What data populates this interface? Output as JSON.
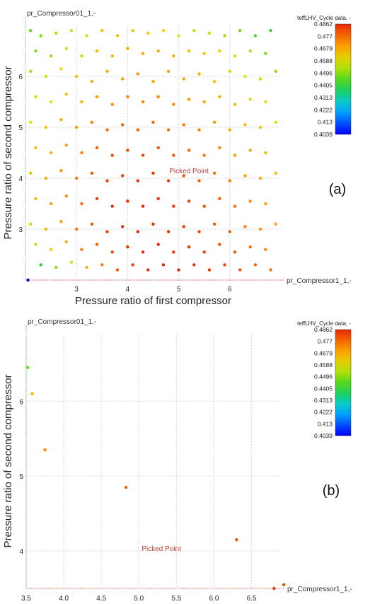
{
  "chart_data": [
    {
      "type": "scatter",
      "panel_label": "(a)",
      "xlabel": "Pressure ratio of first compressor",
      "ylabel": "Pressure ratio of second compressor",
      "x_axis_name": "pr_Compressor1_1,-",
      "y_axis_name": "pr_Compressor01_1,-",
      "xlim": [
        2.0,
        7.0
      ],
      "ylim": [
        2.0,
        7.0
      ],
      "xticks": [
        "3",
        "4",
        "5",
        "6"
      ],
      "xtick_values": [
        3,
        4,
        5,
        6
      ],
      "yticks": [
        "3",
        "4",
        "5",
        "6"
      ],
      "ytick_values": [
        3,
        4,
        5,
        6
      ],
      "grid": true,
      "annotation": "Picked Point",
      "annotation_at": [
        5.2,
        4.1
      ],
      "colorbar": {
        "title": "teffLHV_Cycle data, -",
        "ticks": [
          "0.4862",
          "0.477",
          "0.4679",
          "0.4588",
          "0.4496",
          "0.4405",
          "0.4313",
          "0.4222",
          "0.413",
          "0.4039"
        ],
        "min": 0.4039,
        "max": 0.4862
      },
      "points": [
        [
          2.1,
          6.9,
          0.446
        ],
        [
          2.3,
          6.8,
          0.449
        ],
        [
          2.6,
          6.85,
          0.452
        ],
        [
          2.9,
          6.9,
          0.456
        ],
        [
          3.2,
          6.8,
          0.46
        ],
        [
          3.5,
          6.9,
          0.463
        ],
        [
          3.8,
          6.8,
          0.465
        ],
        [
          4.1,
          6.9,
          0.463
        ],
        [
          4.4,
          6.85,
          0.462
        ],
        [
          4.7,
          6.9,
          0.46
        ],
        [
          5.0,
          6.8,
          0.458
        ],
        [
          5.3,
          6.9,
          0.456
        ],
        [
          5.6,
          6.85,
          0.454
        ],
        [
          5.9,
          6.8,
          0.451
        ],
        [
          6.2,
          6.9,
          0.448
        ],
        [
          6.5,
          6.8,
          0.445
        ],
        [
          6.8,
          6.9,
          0.442
        ],
        [
          2.2,
          6.5,
          0.449
        ],
        [
          2.5,
          6.4,
          0.452
        ],
        [
          2.8,
          6.55,
          0.456
        ],
        [
          3.1,
          6.4,
          0.46
        ],
        [
          3.4,
          6.5,
          0.464
        ],
        [
          3.7,
          6.4,
          0.466
        ],
        [
          4.0,
          6.55,
          0.468
        ],
        [
          4.3,
          6.45,
          0.468
        ],
        [
          4.6,
          6.5,
          0.467
        ],
        [
          4.9,
          6.4,
          0.466
        ],
        [
          5.2,
          6.5,
          0.464
        ],
        [
          5.5,
          6.45,
          0.462
        ],
        [
          5.8,
          6.5,
          0.46
        ],
        [
          6.1,
          6.4,
          0.456
        ],
        [
          6.4,
          6.5,
          0.452
        ],
        [
          6.7,
          6.45,
          0.448
        ],
        [
          2.1,
          6.1,
          0.452
        ],
        [
          2.4,
          6.0,
          0.455
        ],
        [
          2.7,
          6.15,
          0.459
        ],
        [
          3.0,
          6.0,
          0.463
        ],
        [
          3.3,
          5.9,
          0.467
        ],
        [
          3.6,
          6.1,
          0.469
        ],
        [
          3.9,
          5.95,
          0.471
        ],
        [
          4.2,
          6.05,
          0.471
        ],
        [
          4.5,
          5.9,
          0.47
        ],
        [
          4.8,
          6.1,
          0.469
        ],
        [
          5.1,
          5.95,
          0.468
        ],
        [
          5.4,
          6.05,
          0.466
        ],
        [
          5.7,
          5.9,
          0.464
        ],
        [
          6.0,
          6.1,
          0.461
        ],
        [
          6.3,
          6.0,
          0.458
        ],
        [
          6.6,
          5.95,
          0.454
        ],
        [
          6.9,
          6.1,
          0.45
        ],
        [
          2.2,
          5.6,
          0.455
        ],
        [
          2.5,
          5.5,
          0.459
        ],
        [
          2.8,
          5.65,
          0.463
        ],
        [
          3.1,
          5.5,
          0.467
        ],
        [
          3.4,
          5.6,
          0.471
        ],
        [
          3.7,
          5.45,
          0.473
        ],
        [
          4.0,
          5.6,
          0.474
        ],
        [
          4.3,
          5.5,
          0.474
        ],
        [
          4.6,
          5.6,
          0.474
        ],
        [
          4.9,
          5.45,
          0.473
        ],
        [
          5.2,
          5.55,
          0.471
        ],
        [
          5.5,
          5.5,
          0.469
        ],
        [
          5.8,
          5.6,
          0.467
        ],
        [
          6.1,
          5.45,
          0.464
        ],
        [
          6.4,
          5.55,
          0.461
        ],
        [
          6.7,
          5.5,
          0.457
        ],
        [
          2.1,
          5.1,
          0.459
        ],
        [
          2.4,
          5.0,
          0.463
        ],
        [
          2.7,
          5.15,
          0.467
        ],
        [
          3.0,
          5.0,
          0.471
        ],
        [
          3.3,
          5.1,
          0.474
        ],
        [
          3.6,
          4.95,
          0.477
        ],
        [
          3.9,
          5.05,
          0.478
        ],
        [
          4.2,
          4.95,
          0.478
        ],
        [
          4.5,
          5.1,
          0.478
        ],
        [
          4.8,
          4.95,
          0.477
        ],
        [
          5.1,
          5.05,
          0.475
        ],
        [
          5.4,
          4.95,
          0.473
        ],
        [
          5.7,
          5.1,
          0.471
        ],
        [
          6.0,
          4.95,
          0.468
        ],
        [
          6.3,
          5.05,
          0.465
        ],
        [
          6.6,
          5.0,
          0.462
        ],
        [
          6.9,
          5.1,
          0.458
        ],
        [
          2.2,
          4.6,
          0.462
        ],
        [
          2.5,
          4.5,
          0.466
        ],
        [
          2.8,
          4.65,
          0.47
        ],
        [
          3.1,
          4.5,
          0.474
        ],
        [
          3.4,
          4.6,
          0.478
        ],
        [
          3.7,
          4.45,
          0.481
        ],
        [
          4.0,
          4.55,
          0.482
        ],
        [
          4.3,
          4.45,
          0.482
        ],
        [
          4.6,
          4.6,
          0.481
        ],
        [
          4.9,
          4.45,
          0.48
        ],
        [
          5.2,
          4.55,
          0.478
        ],
        [
          5.5,
          4.45,
          0.476
        ],
        [
          5.8,
          4.6,
          0.474
        ],
        [
          6.1,
          4.45,
          0.471
        ],
        [
          6.4,
          4.55,
          0.468
        ],
        [
          6.7,
          4.5,
          0.465
        ],
        [
          2.1,
          4.1,
          0.464
        ],
        [
          2.4,
          4.0,
          0.468
        ],
        [
          2.7,
          4.15,
          0.472
        ],
        [
          3.0,
          4.0,
          0.476
        ],
        [
          3.3,
          4.1,
          0.48
        ],
        [
          3.6,
          3.95,
          0.483
        ],
        [
          3.9,
          4.05,
          0.484
        ],
        [
          4.2,
          3.95,
          0.485
        ],
        [
          4.5,
          4.1,
          0.484
        ],
        [
          4.8,
          3.95,
          0.483
        ],
        [
          5.1,
          4.05,
          0.481
        ],
        [
          5.4,
          3.95,
          0.479
        ],
        [
          5.7,
          4.1,
          0.477
        ],
        [
          6.0,
          3.95,
          0.474
        ],
        [
          6.3,
          4.05,
          0.471
        ],
        [
          6.6,
          4.0,
          0.468
        ],
        [
          6.9,
          4.1,
          0.464
        ],
        [
          2.2,
          3.6,
          0.465
        ],
        [
          2.5,
          3.5,
          0.469
        ],
        [
          2.8,
          3.65,
          0.473
        ],
        [
          3.1,
          3.5,
          0.478
        ],
        [
          3.4,
          3.6,
          0.482
        ],
        [
          3.7,
          3.45,
          0.485
        ],
        [
          4.0,
          3.55,
          0.486
        ],
        [
          4.3,
          3.45,
          0.486
        ],
        [
          4.6,
          3.6,
          0.485
        ],
        [
          4.9,
          3.45,
          0.484
        ],
        [
          5.2,
          3.55,
          0.483
        ],
        [
          5.5,
          3.45,
          0.481
        ],
        [
          5.8,
          3.6,
          0.479
        ],
        [
          6.1,
          3.45,
          0.476
        ],
        [
          6.4,
          3.55,
          0.473
        ],
        [
          6.7,
          3.5,
          0.47
        ],
        [
          2.1,
          3.1,
          0.462
        ],
        [
          2.4,
          3.0,
          0.466
        ],
        [
          2.7,
          3.15,
          0.471
        ],
        [
          3.0,
          3.0,
          0.476
        ],
        [
          3.3,
          3.1,
          0.48
        ],
        [
          3.6,
          2.95,
          0.484
        ],
        [
          3.9,
          3.05,
          0.486
        ],
        [
          4.2,
          2.95,
          0.486
        ],
        [
          4.5,
          3.1,
          0.486
        ],
        [
          4.8,
          2.95,
          0.485
        ],
        [
          5.1,
          3.05,
          0.484
        ],
        [
          5.4,
          2.95,
          0.482
        ],
        [
          5.7,
          3.1,
          0.48
        ],
        [
          6.0,
          2.95,
          0.478
        ],
        [
          6.3,
          3.05,
          0.475
        ],
        [
          6.6,
          3.0,
          0.472
        ],
        [
          6.9,
          3.1,
          0.468
        ],
        [
          2.2,
          2.7,
          0.455
        ],
        [
          2.5,
          2.6,
          0.461
        ],
        [
          2.8,
          2.75,
          0.467
        ],
        [
          3.1,
          2.6,
          0.473
        ],
        [
          3.4,
          2.7,
          0.478
        ],
        [
          3.7,
          2.55,
          0.482
        ],
        [
          4.0,
          2.65,
          0.485
        ],
        [
          4.3,
          2.55,
          0.486
        ],
        [
          4.6,
          2.7,
          0.486
        ],
        [
          4.9,
          2.55,
          0.485
        ],
        [
          5.2,
          2.65,
          0.484
        ],
        [
          5.5,
          2.55,
          0.483
        ],
        [
          5.8,
          2.7,
          0.481
        ],
        [
          6.1,
          2.55,
          0.479
        ],
        [
          6.4,
          2.65,
          0.476
        ],
        [
          6.7,
          2.6,
          0.473
        ],
        [
          2.3,
          2.3,
          0.44
        ],
        [
          2.6,
          2.25,
          0.45
        ],
        [
          2.9,
          2.35,
          0.458
        ],
        [
          3.2,
          2.25,
          0.466
        ],
        [
          3.5,
          2.3,
          0.474
        ],
        [
          3.8,
          2.2,
          0.479
        ],
        [
          4.1,
          2.3,
          0.483
        ],
        [
          4.4,
          2.2,
          0.485
        ],
        [
          4.7,
          2.3,
          0.486
        ],
        [
          5.0,
          2.2,
          0.486
        ],
        [
          5.3,
          2.3,
          0.485
        ],
        [
          5.6,
          2.2,
          0.484
        ],
        [
          5.9,
          2.3,
          0.482
        ],
        [
          6.2,
          2.2,
          0.48
        ],
        [
          6.5,
          2.3,
          0.478
        ],
        [
          6.8,
          2.2,
          0.476
        ],
        [
          2.05,
          2.0,
          0.4039
        ]
      ]
    },
    {
      "type": "scatter",
      "panel_label": "(b)",
      "xlabel": "",
      "ylabel": "Pressure ratio of second compressor",
      "x_axis_name": "pr_Compressor1_1,-",
      "y_axis_name": "pr_Compressor01_1,-",
      "xlim": [
        3.5,
        6.9
      ],
      "ylim": [
        3.5,
        6.9
      ],
      "xticks": [
        "3.5",
        "4.0",
        "4.5",
        "5.0",
        "5.5",
        "6.0",
        "6.5"
      ],
      "xtick_values": [
        3.5,
        4.0,
        4.5,
        5.0,
        5.5,
        6.0,
        6.5
      ],
      "yticks": [
        "4",
        "5",
        "6"
      ],
      "ytick_values": [
        4,
        5,
        6
      ],
      "grid": true,
      "annotation": "Picked Point",
      "annotation_at": [
        5.3,
        4.0
      ],
      "colorbar": {
        "title": "teffLHV_Cycle data, -",
        "ticks": [
          "0.4862",
          "0.477",
          "0.4679",
          "0.4588",
          "0.4496",
          "0.4405",
          "0.4313",
          "0.4222",
          "0.413",
          "0.4039"
        ],
        "min": 0.4039,
        "max": 0.4862
      },
      "points": [
        [
          3.52,
          6.45,
          0.446
        ],
        [
          3.58,
          6.1,
          0.466
        ],
        [
          3.75,
          5.35,
          0.474
        ],
        [
          4.83,
          4.85,
          0.479
        ],
        [
          6.3,
          4.15,
          0.481
        ],
        [
          6.93,
          3.55,
          0.481
        ],
        [
          6.8,
          3.5,
          0.484
        ]
      ]
    }
  ]
}
